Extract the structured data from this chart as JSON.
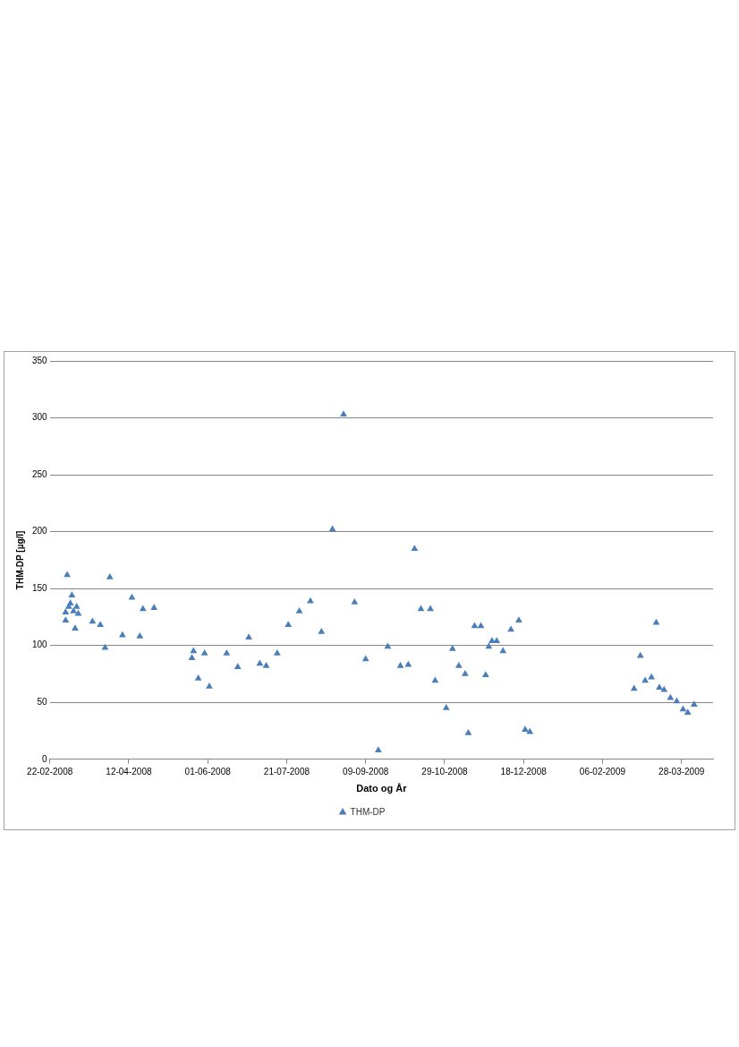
{
  "chart_data": {
    "type": "scatter",
    "xlabel": "Dato og År",
    "ylabel": "THM-DP [µg/l]",
    "xlim": [
      "2008-02-22",
      "2009-04-17"
    ],
    "xticks": [
      {
        "value": "2008-02-22",
        "label": "22-02-2008"
      },
      {
        "value": "2008-04-12",
        "label": "12-04-2008"
      },
      {
        "value": "2008-06-01",
        "label": "01-06-2008"
      },
      {
        "value": "2008-07-21",
        "label": "21-07-2008"
      },
      {
        "value": "2008-09-09",
        "label": "09-09-2008"
      },
      {
        "value": "2008-10-29",
        "label": "29-10-2008"
      },
      {
        "value": "2008-12-18",
        "label": "18-12-2008"
      },
      {
        "value": "2009-02-06",
        "label": "06-02-2009"
      },
      {
        "value": "2009-03-28",
        "label": "28-03-2009"
      }
    ],
    "ylim": [
      0,
      350
    ],
    "yticks": [
      0,
      50,
      100,
      150,
      200,
      250,
      300,
      350
    ],
    "grid": "y",
    "legend": "bottom",
    "marker": "triangle",
    "series": [
      {
        "name": "THM-DP",
        "color": "#4a7ebb",
        "x": [
          "2008-03-03",
          "2008-03-03",
          "2008-03-04",
          "2008-03-05",
          "2008-03-06",
          "2008-03-07",
          "2008-03-08",
          "2008-03-09",
          "2008-03-10",
          "2008-03-11",
          "2008-03-20",
          "2008-03-25",
          "2008-03-28",
          "2008-03-31",
          "2008-04-08",
          "2008-04-14",
          "2008-04-19",
          "2008-04-21",
          "2008-04-28",
          "2008-05-22",
          "2008-05-23",
          "2008-05-26",
          "2008-05-30",
          "2008-06-02",
          "2008-06-13",
          "2008-06-20",
          "2008-06-27",
          "2008-07-04",
          "2008-07-08",
          "2008-07-15",
          "2008-07-22",
          "2008-07-29",
          "2008-08-05",
          "2008-08-12",
          "2008-08-19",
          "2008-08-26",
          "2008-09-02",
          "2008-09-09",
          "2008-09-17",
          "2008-09-23",
          "2008-10-01",
          "2008-10-06",
          "2008-10-10",
          "2008-10-14",
          "2008-10-20",
          "2008-10-23",
          "2008-10-30",
          "2008-11-03",
          "2008-11-07",
          "2008-11-11",
          "2008-11-13",
          "2008-11-17",
          "2008-11-21",
          "2008-11-24",
          "2008-11-26",
          "2008-11-28",
          "2008-12-01",
          "2008-12-05",
          "2008-12-10",
          "2008-12-15",
          "2008-12-19",
          "2008-12-22",
          "2009-02-26",
          "2009-03-02",
          "2009-03-05",
          "2009-03-09",
          "2009-03-12",
          "2009-03-14",
          "2009-03-17",
          "2009-03-21",
          "2009-03-25",
          "2009-03-29",
          "2009-04-01",
          "2009-04-05"
        ],
        "values": [
          129,
          122,
          162,
          134,
          137,
          144,
          130,
          115,
          134,
          128,
          121,
          118,
          98,
          160,
          109,
          142,
          108,
          132,
          133,
          89,
          95,
          71,
          93,
          64,
          93,
          81,
          107,
          84,
          82,
          93,
          118,
          130,
          139,
          112,
          202,
          303,
          138,
          88,
          8,
          99,
          82,
          83,
          185,
          132,
          132,
          69,
          45,
          97,
          82,
          75,
          23,
          117,
          117,
          74,
          99,
          104,
          104,
          95,
          114,
          122,
          26,
          24,
          62,
          91,
          69,
          72,
          120,
          63,
          61,
          54,
          51,
          44,
          41,
          48
        ]
      }
    ]
  }
}
